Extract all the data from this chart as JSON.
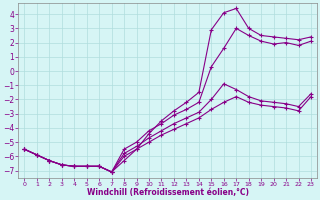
{
  "xlabel": "Windchill (Refroidissement éolien,°C)",
  "xlim": [
    -0.5,
    23.5
  ],
  "ylim": [
    -7.5,
    4.8
  ],
  "xticks": [
    0,
    1,
    2,
    3,
    4,
    5,
    6,
    7,
    8,
    9,
    10,
    11,
    12,
    13,
    14,
    15,
    16,
    17,
    18,
    19,
    20,
    21,
    22,
    23
  ],
  "yticks": [
    4,
    3,
    2,
    1,
    0,
    -1,
    -2,
    -3,
    -4,
    -5,
    -6,
    -7
  ],
  "background_color": "#d6f5f5",
  "grid_color": "#b0dede",
  "line_color": "#880088",
  "line1_x": [
    0,
    1,
    2,
    3,
    4,
    5,
    6,
    7,
    8,
    9,
    10,
    11,
    12,
    13,
    14,
    15,
    16,
    17,
    18,
    19,
    20,
    21,
    22,
    23
  ],
  "line1_y": [
    -5.5,
    -5.9,
    -6.3,
    -6.6,
    -6.7,
    -6.7,
    -6.7,
    -7.1,
    -6.3,
    -5.5,
    -4.4,
    -3.5,
    -2.8,
    -2.2,
    -1.5,
    2.9,
    4.1,
    4.4,
    3.0,
    2.5,
    2.4,
    2.3,
    2.2,
    2.4
  ],
  "line2_x": [
    0,
    1,
    2,
    3,
    4,
    5,
    6,
    7,
    8,
    9,
    10,
    11,
    12,
    13,
    14,
    15,
    16,
    17,
    18,
    19,
    20,
    21,
    22,
    23
  ],
  "line2_y": [
    -5.5,
    -5.9,
    -6.3,
    -6.6,
    -6.7,
    -6.7,
    -6.7,
    -7.1,
    -5.5,
    -5.0,
    -4.2,
    -3.7,
    -3.1,
    -2.7,
    -2.2,
    0.3,
    1.6,
    3.0,
    2.5,
    2.1,
    1.9,
    2.0,
    1.8,
    2.1
  ],
  "line3_x": [
    0,
    1,
    2,
    3,
    4,
    5,
    6,
    7,
    8,
    9,
    10,
    11,
    12,
    13,
    14,
    15,
    16,
    17,
    18,
    19,
    20,
    21,
    22,
    23
  ],
  "line3_y": [
    -5.5,
    -5.9,
    -6.3,
    -6.6,
    -6.7,
    -6.7,
    -6.7,
    -7.1,
    -5.8,
    -5.3,
    -4.7,
    -4.2,
    -3.7,
    -3.3,
    -2.9,
    -2.0,
    -0.9,
    -1.3,
    -1.8,
    -2.1,
    -2.2,
    -2.3,
    -2.5,
    -1.6
  ],
  "line4_x": [
    0,
    1,
    2,
    3,
    4,
    5,
    6,
    7,
    8,
    9,
    10,
    11,
    12,
    13,
    14,
    15,
    16,
    17,
    18,
    19,
    20,
    21,
    22,
    23
  ],
  "line4_y": [
    -5.5,
    -5.9,
    -6.3,
    -6.6,
    -6.7,
    -6.7,
    -6.7,
    -7.1,
    -6.0,
    -5.5,
    -5.0,
    -4.5,
    -4.1,
    -3.7,
    -3.3,
    -2.7,
    -2.2,
    -1.8,
    -2.2,
    -2.4,
    -2.5,
    -2.6,
    -2.8,
    -1.8
  ]
}
